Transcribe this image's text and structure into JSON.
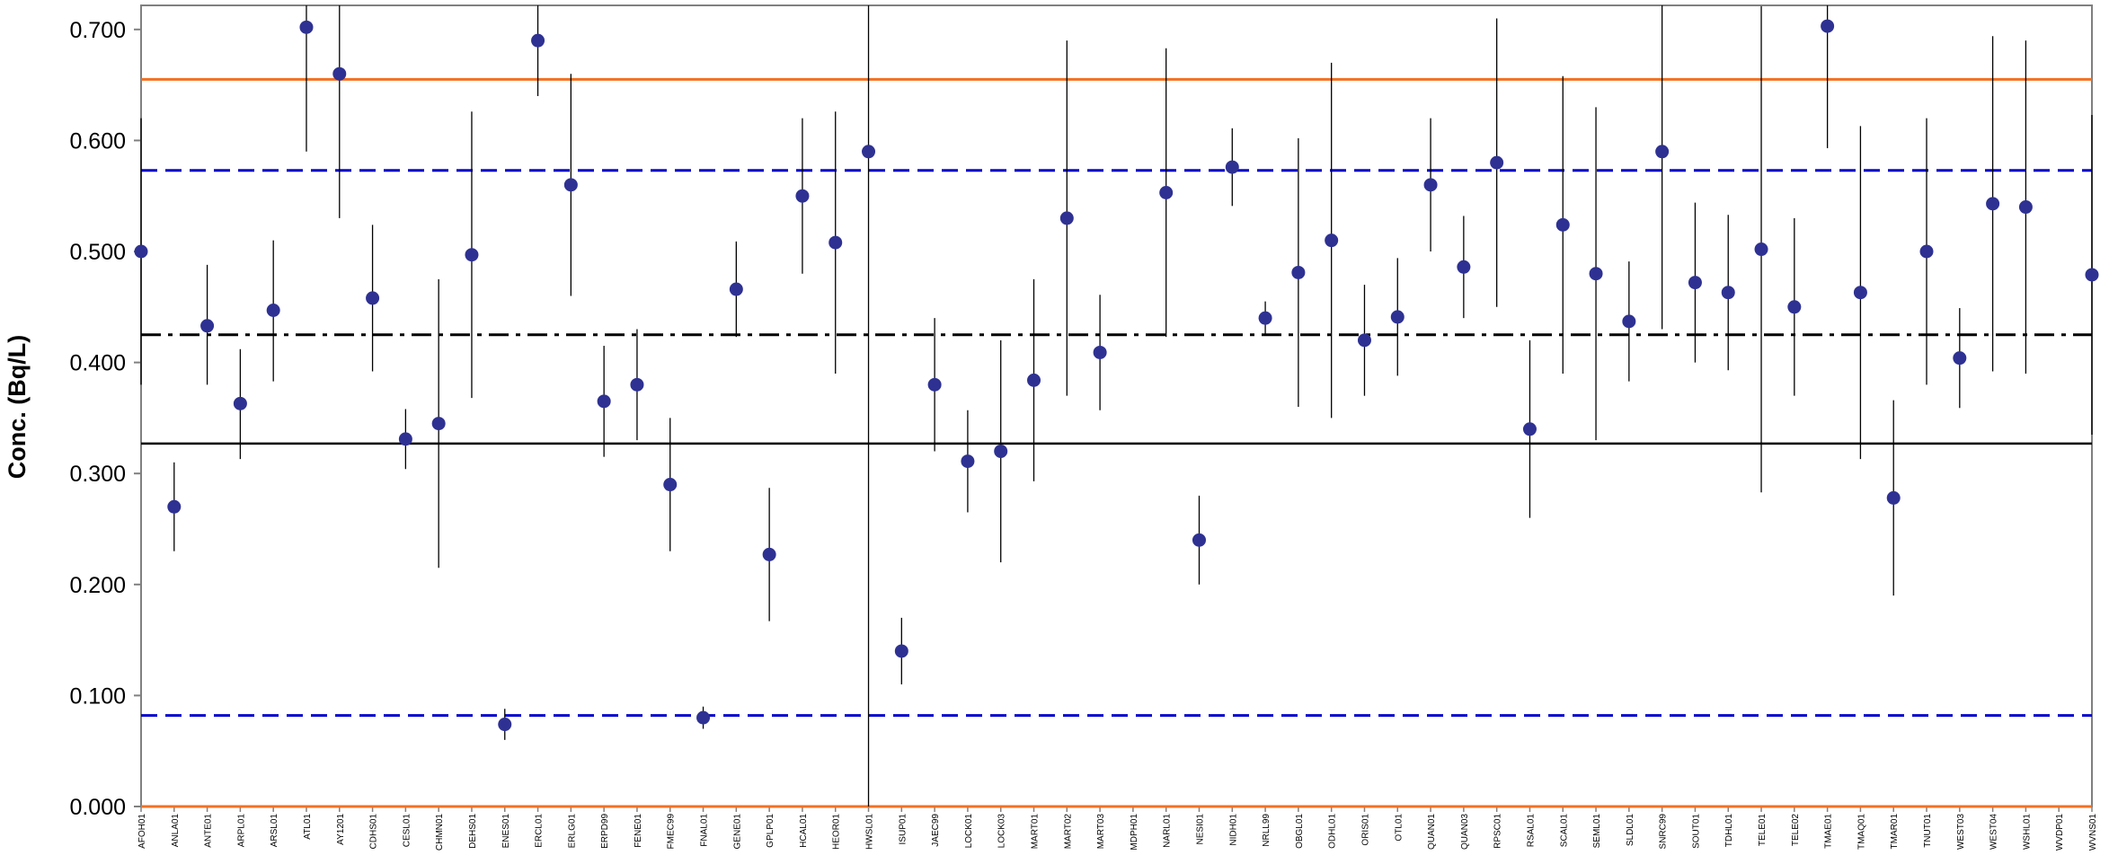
{
  "chart_data": {
    "type": "scatter",
    "ylabel": "Conc. (Bq/L)",
    "ylim": [
      0,
      0.72
    ],
    "yticks": [
      "0.000",
      "0.100",
      "0.200",
      "0.300",
      "0.400",
      "0.500",
      "0.600",
      "0.700"
    ],
    "grid": false,
    "colors": {
      "marker": "#2e3192",
      "error_bar": "#000000",
      "orange_line": "#f37021",
      "blue_dashed": "#0000cc",
      "dashdot": "#000000",
      "solid": "#000000"
    },
    "reference_lines": [
      {
        "style": "orange-solid",
        "y": 0.655
      },
      {
        "style": "blue-dashed",
        "y": 0.573
      },
      {
        "style": "black-dashdot",
        "y": 0.425
      },
      {
        "style": "black-solid",
        "y": 0.327
      },
      {
        "style": "blue-dashed",
        "y": 0.082
      },
      {
        "style": "orange-solid",
        "y": 0.0
      }
    ],
    "points": [
      {
        "label": "AFOH01",
        "y": 0.5,
        "low": 0.38,
        "high": 0.62
      },
      {
        "label": "ANLA01",
        "y": 0.27,
        "low": 0.23,
        "high": 0.31
      },
      {
        "label": "ANTE01",
        "y": 0.433,
        "low": 0.38,
        "high": 0.488
      },
      {
        "label": "ARPL01",
        "y": 0.363,
        "low": 0.313,
        "high": 0.412
      },
      {
        "label": "ARSL01",
        "y": 0.447,
        "low": 0.383,
        "high": 0.51
      },
      {
        "label": "ATL01",
        "y": 0.702,
        "low": 0.59,
        "high": 0.75
      },
      {
        "label": "AY1201",
        "y": 0.66,
        "low": 0.53,
        "high": 0.75
      },
      {
        "label": "CDHS01",
        "y": 0.458,
        "low": 0.392,
        "high": 0.524
      },
      {
        "label": "CESL01",
        "y": 0.331,
        "low": 0.304,
        "high": 0.358
      },
      {
        "label": "CHMN01",
        "y": 0.345,
        "low": 0.215,
        "high": 0.475
      },
      {
        "label": "DEHS01",
        "y": 0.497,
        "low": 0.368,
        "high": 0.626
      },
      {
        "label": "ENES01",
        "y": 0.074,
        "low": 0.06,
        "high": 0.088
      },
      {
        "label": "ERCL01",
        "y": 0.69,
        "low": 0.64,
        "high": 0.74
      },
      {
        "label": "ERLG01",
        "y": 0.56,
        "low": 0.46,
        "high": 0.66
      },
      {
        "label": "ERPD99",
        "y": 0.365,
        "low": 0.315,
        "high": 0.415
      },
      {
        "label": "FENE01",
        "y": 0.38,
        "low": 0.33,
        "high": 0.43
      },
      {
        "label": "FMEC99",
        "y": 0.29,
        "low": 0.23,
        "high": 0.35
      },
      {
        "label": "FNAL01",
        "y": 0.08,
        "low": 0.07,
        "high": 0.09
      },
      {
        "label": "GENE01",
        "y": 0.466,
        "low": 0.423,
        "high": 0.509
      },
      {
        "label": "GPLP01",
        "y": 0.227,
        "low": 0.167,
        "high": 0.287
      },
      {
        "label": "HCAL01",
        "y": 0.55,
        "low": 0.48,
        "high": 0.62
      },
      {
        "label": "HEOR01",
        "y": 0.508,
        "low": 0.39,
        "high": 0.626
      },
      {
        "label": "HWSL01",
        "y": 0.59,
        "low": 0.0,
        "high": 0.75
      },
      {
        "label": "ISUP01",
        "y": 0.14,
        "low": 0.11,
        "high": 0.17
      },
      {
        "label": "JAEC99",
        "y": 0.38,
        "low": 0.32,
        "high": 0.44
      },
      {
        "label": "LOCK01",
        "y": 0.311,
        "low": 0.265,
        "high": 0.357
      },
      {
        "label": "LOCK03",
        "y": 0.32,
        "low": 0.22,
        "high": 0.42
      },
      {
        "label": "MART01",
        "y": 0.384,
        "low": 0.293,
        "high": 0.475
      },
      {
        "label": "MART02",
        "y": 0.53,
        "low": 0.37,
        "high": 0.69
      },
      {
        "label": "MART03",
        "y": 0.409,
        "low": 0.357,
        "high": 0.461
      },
      {
        "label": "MDPH01",
        "y": null,
        "low": null,
        "high": null
      },
      {
        "label": "NARL01",
        "y": 0.553,
        "low": 0.423,
        "high": 0.683
      },
      {
        "label": "NESI01",
        "y": 0.24,
        "low": 0.2,
        "high": 0.28
      },
      {
        "label": "NIDH01",
        "y": 0.576,
        "low": 0.541,
        "high": 0.611
      },
      {
        "label": "NRLL99",
        "y": 0.44,
        "low": 0.425,
        "high": 0.455
      },
      {
        "label": "OBGL01",
        "y": 0.481,
        "low": 0.36,
        "high": 0.602
      },
      {
        "label": "ODHL01",
        "y": 0.51,
        "low": 0.35,
        "high": 0.67
      },
      {
        "label": "ORIS01",
        "y": 0.42,
        "low": 0.37,
        "high": 0.47
      },
      {
        "label": "OTL01",
        "y": 0.441,
        "low": 0.388,
        "high": 0.494
      },
      {
        "label": "QUAN01",
        "y": 0.56,
        "low": 0.5,
        "high": 0.62
      },
      {
        "label": "QUAN03",
        "y": 0.486,
        "low": 0.44,
        "high": 0.532
      },
      {
        "label": "RPSC01",
        "y": 0.58,
        "low": 0.45,
        "high": 0.71
      },
      {
        "label": "RSAL01",
        "y": 0.34,
        "low": 0.26,
        "high": 0.42
      },
      {
        "label": "SCAL01",
        "y": 0.524,
        "low": 0.39,
        "high": 0.658
      },
      {
        "label": "SEML01",
        "y": 0.48,
        "low": 0.33,
        "high": 0.63
      },
      {
        "label": "SLDL01",
        "y": 0.437,
        "low": 0.383,
        "high": 0.491
      },
      {
        "label": "SNRC99",
        "y": 0.59,
        "low": 0.43,
        "high": 0.75
      },
      {
        "label": "SOUT01",
        "y": 0.472,
        "low": 0.4,
        "high": 0.544
      },
      {
        "label": "TDHL01",
        "y": 0.463,
        "low": 0.393,
        "high": 0.533
      },
      {
        "label": "TELE01",
        "y": 0.502,
        "low": 0.283,
        "high": 0.721
      },
      {
        "label": "TELE02",
        "y": 0.45,
        "low": 0.37,
        "high": 0.53
      },
      {
        "label": "TMAE01",
        "y": 0.703,
        "low": 0.593,
        "high": 0.75
      },
      {
        "label": "TMAQ01",
        "y": 0.463,
        "low": 0.313,
        "high": 0.613
      },
      {
        "label": "TMAR01",
        "y": 0.278,
        "low": 0.19,
        "high": 0.366
      },
      {
        "label": "TNUT01",
        "y": 0.5,
        "low": 0.38,
        "high": 0.62
      },
      {
        "label": "WEST03",
        "y": 0.404,
        "low": 0.359,
        "high": 0.449
      },
      {
        "label": "WEST04",
        "y": 0.543,
        "low": 0.392,
        "high": 0.694
      },
      {
        "label": "WSHL01",
        "y": 0.54,
        "low": 0.39,
        "high": 0.69
      },
      {
        "label": "WVDP01",
        "y": null,
        "low": null,
        "high": null
      },
      {
        "label": "WVNS01",
        "y": 0.479,
        "low": 0.335,
        "high": 0.623
      }
    ]
  }
}
